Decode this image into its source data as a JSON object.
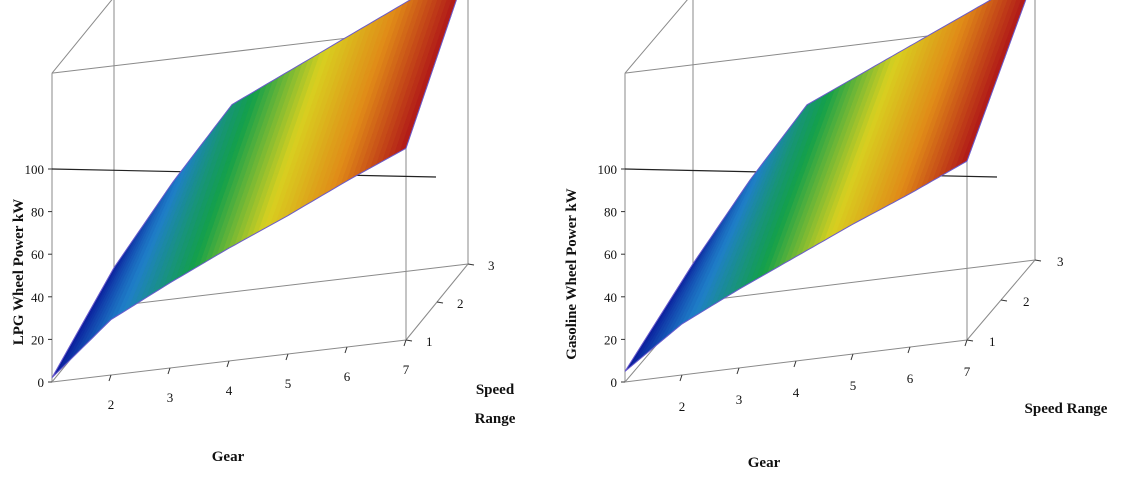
{
  "chart_data": [
    {
      "type": "surface",
      "xlabel": "Gear",
      "ylabel": "Speed Range",
      "ylabel_lines": [
        "Speed",
        "Range"
      ],
      "zlabel": "LPG Wheel Power kW",
      "x_ticks": [
        "2",
        "3",
        "4",
        "5",
        "6",
        "7"
      ],
      "y_ticks": [
        "1",
        "2",
        "3"
      ],
      "z_ticks": [
        "0",
        "20",
        "40",
        "60",
        "80",
        "100"
      ],
      "xlim": [
        1,
        7
      ],
      "ylim": [
        1,
        3
      ],
      "zlim": [
        0,
        100
      ],
      "colormap": [
        "#0a1a9a",
        "#1f7fc8",
        "#13a04a",
        "#d8d020",
        "#e08a18",
        "#b01818"
      ],
      "gear": [
        1,
        2,
        3,
        4,
        5,
        6,
        7
      ],
      "power_speed_range_1": [
        2,
        26,
        40,
        53,
        65,
        78,
        90
      ],
      "power_speed_range_3": [
        18,
        55,
        88,
        101,
        114,
        127,
        140
      ]
    },
    {
      "type": "surface",
      "xlabel": "Gear",
      "ylabel": "Speed Range",
      "ylabel_lines": [
        "Speed Range"
      ],
      "zlabel": "Gasoline Wheel Power kW",
      "x_ticks": [
        "2",
        "3",
        "4",
        "5",
        "6",
        "7"
      ],
      "y_ticks": [
        "1",
        "2",
        "3"
      ],
      "z_ticks": [
        "0",
        "20",
        "40",
        "60",
        "80",
        "100"
      ],
      "xlim": [
        1,
        7
      ],
      "ylim": [
        1,
        3
      ],
      "zlim": [
        0,
        100
      ],
      "colormap": [
        "#0a1a9a",
        "#1f7fc8",
        "#13a04a",
        "#d8d020",
        "#e08a18",
        "#b01818"
      ],
      "gear": [
        1,
        2,
        3,
        4,
        5,
        6,
        7
      ],
      "power_speed_range_1": [
        5,
        24,
        37,
        49,
        61,
        72,
        84
      ],
      "power_speed_range_3": [
        18,
        54,
        86,
        98,
        110,
        122,
        134
      ]
    }
  ]
}
